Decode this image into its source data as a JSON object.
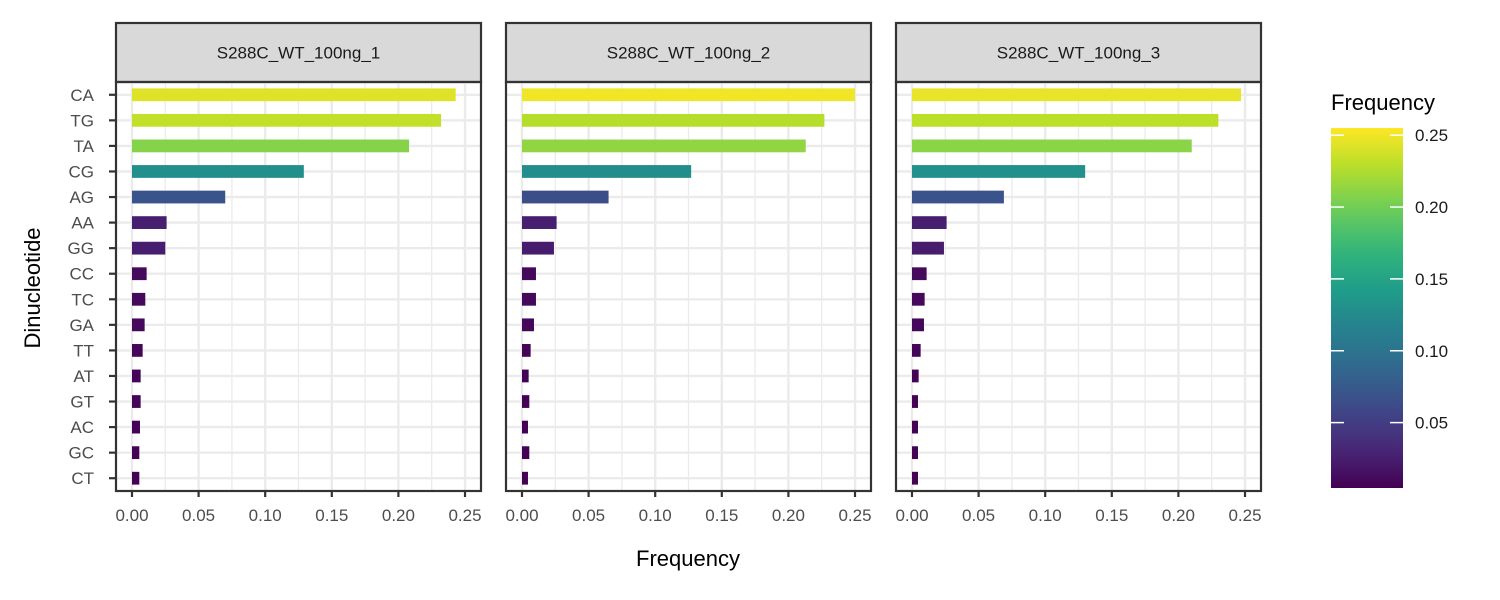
{
  "chart_data": {
    "type": "bar",
    "orientation": "horizontal",
    "facets": [
      "S288C_WT_100ng_1",
      "S288C_WT_100ng_2",
      "S288C_WT_100ng_3"
    ],
    "categories": [
      "CA",
      "TG",
      "TA",
      "CG",
      "AG",
      "AA",
      "GG",
      "CC",
      "TC",
      "GA",
      "TT",
      "AT",
      "GT",
      "AC",
      "GC",
      "CT"
    ],
    "series": [
      {
        "name": "S288C_WT_100ng_1",
        "values": [
          0.243,
          0.232,
          0.208,
          0.129,
          0.07,
          0.026,
          0.025,
          0.011,
          0.01,
          0.0095,
          0.008,
          0.0065,
          0.0065,
          0.006,
          0.0055,
          0.0055
        ]
      },
      {
        "name": "S288C_WT_100ng_2",
        "values": [
          0.25,
          0.227,
          0.213,
          0.127,
          0.065,
          0.026,
          0.024,
          0.0105,
          0.0105,
          0.009,
          0.0065,
          0.005,
          0.0055,
          0.0045,
          0.0055,
          0.0045
        ]
      },
      {
        "name": "S288C_WT_100ng_3",
        "values": [
          0.247,
          0.23,
          0.21,
          0.13,
          0.069,
          0.026,
          0.024,
          0.011,
          0.0095,
          0.009,
          0.0065,
          0.005,
          0.0045,
          0.0045,
          0.0045,
          0.0045
        ]
      }
    ],
    "xlabel": "Frequency",
    "ylabel": "Dinucleotide",
    "xlim": [
      -0.012,
      0.262
    ],
    "xticks": [
      0.0,
      0.05,
      0.1,
      0.15,
      0.2,
      0.25
    ],
    "xtick_labels": [
      "0.00",
      "0.05",
      "0.10",
      "0.15",
      "0.20",
      "0.25"
    ],
    "grid": true,
    "legend": {
      "title": "Frequency",
      "position": "right",
      "type": "colorbar",
      "colormap": "viridis",
      "range": [
        0.0045,
        0.255
      ],
      "ticks": [
        0.05,
        0.1,
        0.15,
        0.2,
        0.25
      ],
      "tick_labels": [
        "0.05",
        "0.10",
        "0.15",
        "0.20",
        "0.25"
      ]
    },
    "colors": {
      "strip_fill": "#d9d9d9",
      "panel_border": "#333333",
      "grid_color": "#ebebeb",
      "text_color": "#4d4d4d",
      "title_color": "#000000"
    }
  }
}
